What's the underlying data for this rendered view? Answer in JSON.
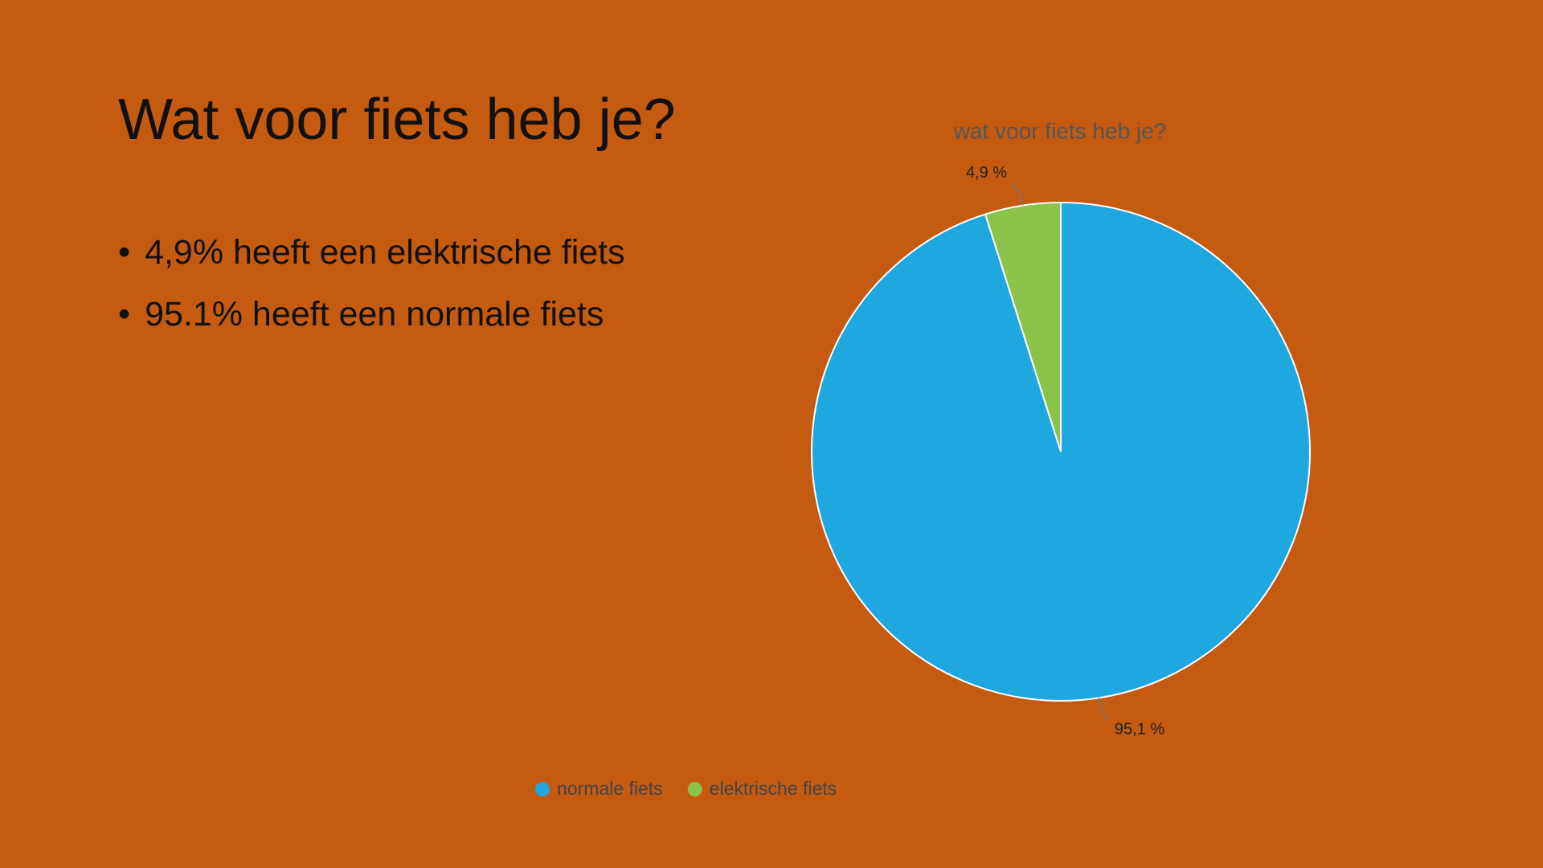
{
  "slide": {
    "title": "Wat voor fiets heb je?",
    "bullets": [
      "4,9% heeft een elektrische fiets",
      "95.1% heeft een normale fiets"
    ]
  },
  "chart_data": {
    "type": "pie",
    "title": "wat voor fiets heb je?",
    "categories": [
      "normale fiets",
      "elektrische fiets"
    ],
    "values": [
      95.1,
      4.9
    ],
    "value_labels": [
      "95,1 %",
      "4,9 %"
    ],
    "colors": [
      "#1fa8e0",
      "#8bc34a"
    ],
    "legend": "bottom"
  }
}
